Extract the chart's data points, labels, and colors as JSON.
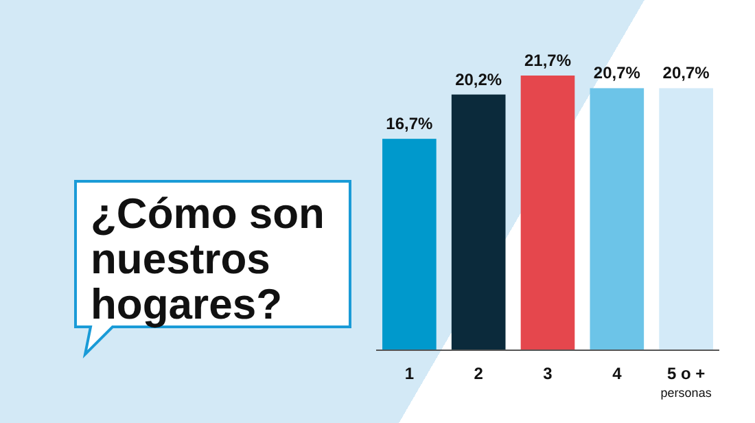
{
  "chart_data": {
    "type": "bar",
    "title": "¿Cómo son nuestros hogares?",
    "categories": [
      "1",
      "2",
      "3",
      "4",
      "5 o +\npersonas"
    ],
    "values": [
      16.7,
      20.2,
      21.7,
      20.7,
      20.7
    ],
    "colors": [
      "#0099cc",
      "#0b2a3b",
      "#e5474d",
      "#6cc4e8",
      "#d3eaf8"
    ],
    "value_labels": [
      "16,7%",
      "20,2%",
      "21,7%",
      "20,7%",
      "20,7%"
    ],
    "grid": false
  }
}
